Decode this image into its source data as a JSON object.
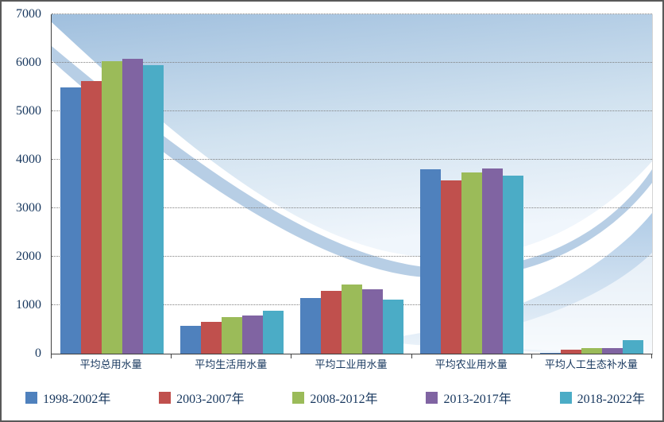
{
  "chart": {
    "text_color": "#17375E",
    "axis_color": "#404040",
    "grid_color": "#808080"
  },
  "chart_data": {
    "type": "bar",
    "title": "",
    "categories": [
      "平均总用水量",
      "平均生活用水量",
      "平均工业用水量",
      "平均农业用水量",
      "平均人工生态补水量"
    ],
    "series": [
      {
        "name": "1998-2002年",
        "color": "#4F81BD",
        "values": [
          5500,
          580,
          1150,
          3800,
          20
        ]
      },
      {
        "name": "2003-2007年",
        "color": "#C0504D",
        "values": [
          5620,
          660,
          1290,
          3570,
          90
        ]
      },
      {
        "name": "2008-2012年",
        "color": "#9BBB59",
        "values": [
          6030,
          760,
          1420,
          3740,
          110
        ]
      },
      {
        "name": "2013-2017年",
        "color": "#8064A2",
        "values": [
          6080,
          790,
          1330,
          3820,
          120
        ]
      },
      {
        "name": "2018-2022年",
        "color": "#4BACC6",
        "values": [
          5950,
          880,
          1120,
          3670,
          280
        ]
      }
    ],
    "xlabel": "",
    "ylabel": "",
    "ylim": [
      0,
      7000
    ],
    "ytick_step": 1000,
    "grid": true,
    "legend_position": "bottom"
  }
}
